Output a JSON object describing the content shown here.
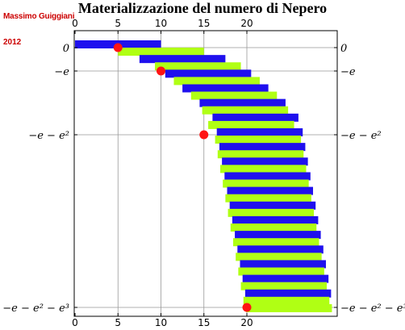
{
  "title": "Materializzazione del numero di Nepero",
  "author": "Massimo Guiggiani",
  "year": "2012",
  "colors": {
    "blue_bar": "#1f10ee",
    "green_bar": "#b0ff14",
    "dot": "#ff1414",
    "grid": "#999999"
  },
  "chart_data": {
    "type": "bar",
    "orientation": "horizontal",
    "title": "Materializzazione del numero di Nepero",
    "xlim": [
      0,
      30
    ],
    "x_ticks": [
      "0",
      "5",
      "10",
      "15",
      "20"
    ],
    "y_ticks": [
      "0",
      "−e",
      "−e − e²",
      "−e − e² − e³"
    ],
    "grid": true,
    "series": [
      {
        "color": "blue",
        "bars": [
          [
            0,
            10
          ],
          [
            7.5,
            17.5
          ],
          [
            10.5,
            20.5
          ],
          [
            12.5,
            22.5
          ],
          [
            14.5,
            24.5
          ],
          [
            16,
            26
          ],
          [
            16.5,
            26.5
          ],
          [
            16.8,
            26.8
          ],
          [
            17.1,
            27.1
          ],
          [
            17.4,
            27.4
          ],
          [
            17.7,
            27.7
          ],
          [
            18,
            28
          ],
          [
            18.3,
            28.3
          ],
          [
            18.6,
            28.6
          ],
          [
            18.9,
            28.9
          ],
          [
            19.2,
            29.2
          ],
          [
            19.5,
            29.5
          ],
          [
            19.8,
            29.8
          ]
        ]
      },
      {
        "color": "green",
        "bars": [
          [
            5,
            15
          ],
          [
            9.3,
            19.3
          ],
          [
            11.5,
            21.5
          ],
          [
            13.5,
            23.5
          ],
          [
            14.8,
            24.8
          ],
          [
            15.5,
            25.5
          ],
          [
            16.3,
            26.3
          ],
          [
            16.6,
            26.6
          ],
          [
            16.9,
            26.9
          ],
          [
            17.2,
            27.2
          ],
          [
            17.5,
            27.5
          ],
          [
            17.8,
            27.8
          ],
          [
            18.1,
            28.1
          ],
          [
            18.4,
            28.4
          ],
          [
            18.7,
            28.7
          ],
          [
            19,
            29
          ],
          [
            19.3,
            29.3
          ],
          [
            19.6,
            29.6
          ],
          [
            19.9,
            29.9
          ]
        ]
      }
    ],
    "points": [
      {
        "x": 5,
        "y": "0"
      },
      {
        "x": 10,
        "y": "−e"
      },
      {
        "x": 15,
        "y": "−e − e²"
      },
      {
        "x": 20,
        "y": "−e − e² − e³"
      }
    ]
  }
}
